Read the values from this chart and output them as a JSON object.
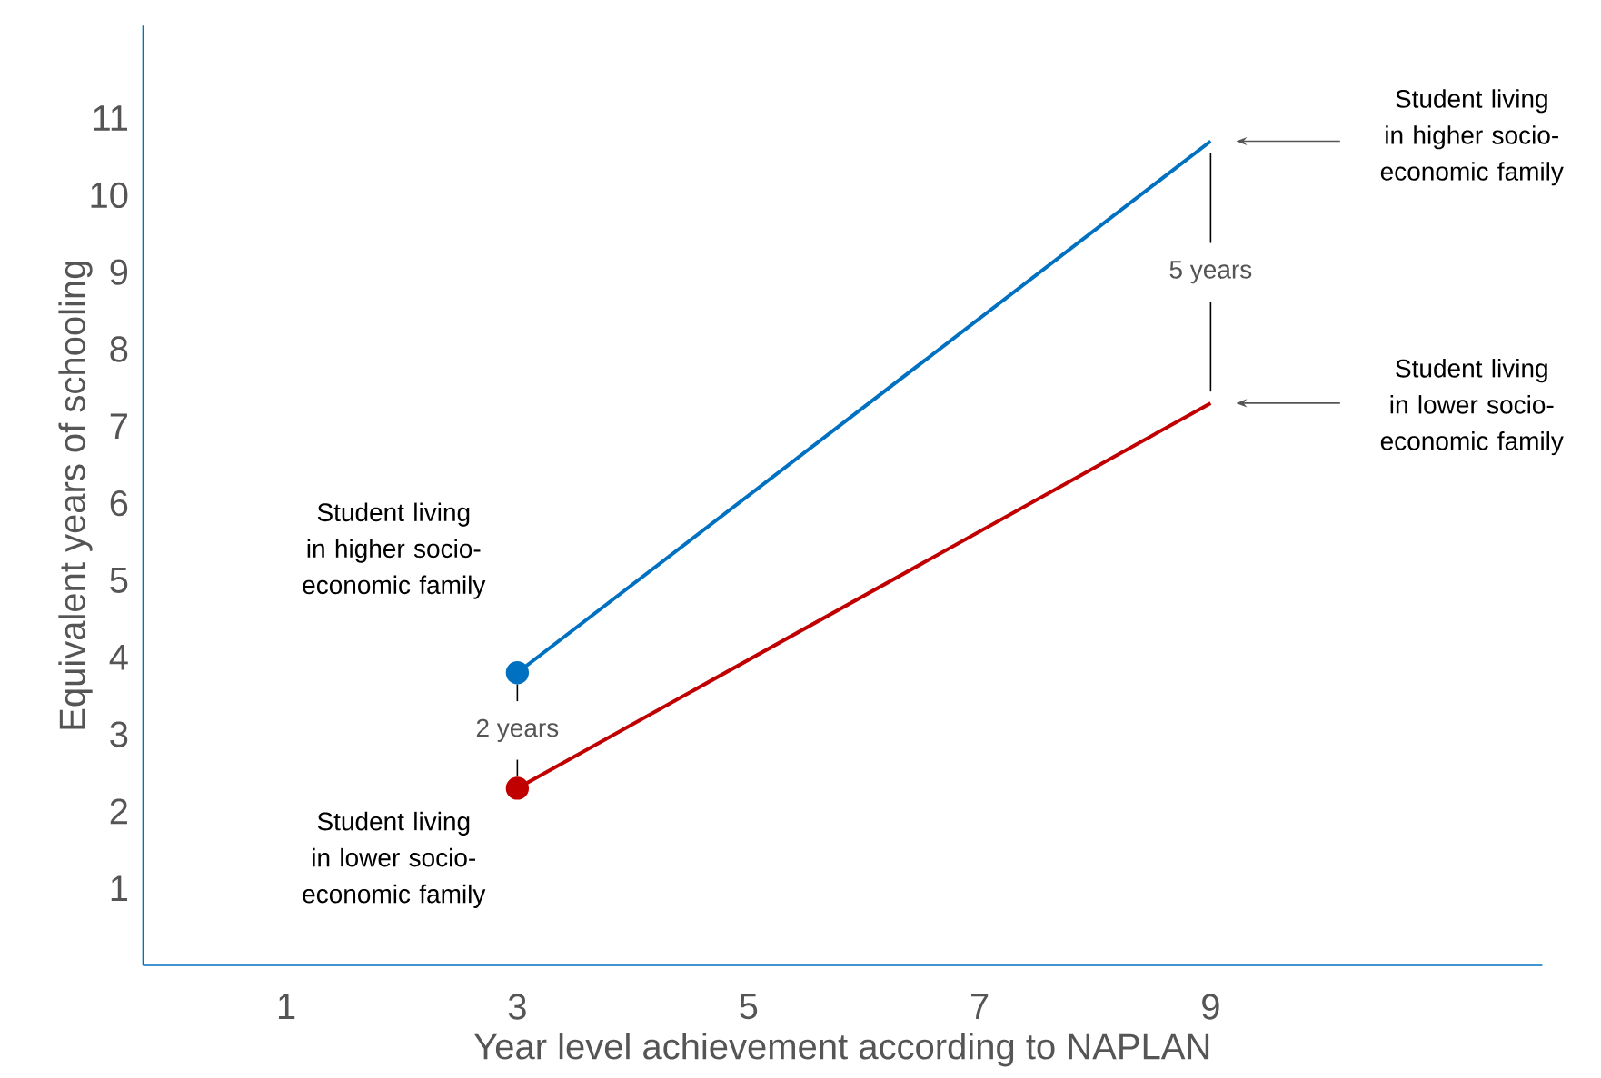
{
  "chart_data": {
    "type": "line",
    "xlabel": "Year level achievement according to NAPLAN",
    "ylabel": "Equivalent years of schooling",
    "xlim": [
      -0.24,
      11.87
    ],
    "xticks": [
      1,
      3,
      5,
      7,
      9
    ],
    "ylim": [
      0,
      12.2
    ],
    "yticks": [
      1,
      2,
      3,
      4,
      5,
      6,
      7,
      8,
      9,
      10,
      11
    ],
    "marker": "circle",
    "grid": false,
    "x": [
      3,
      9
    ],
    "series": [
      {
        "color": "#0070c0",
        "values": [
          3.8,
          10.7
        ]
      },
      {
        "color": "#c00000",
        "values": [
          2.3,
          7.3
        ]
      }
    ],
    "annotations": [
      "Student living in higher socio-economic family",
      "Student living in lower socio-economic family",
      "2 years",
      "Student living in higher socio-economic family",
      "Student living in lower socio-economic family",
      "5 years"
    ]
  }
}
